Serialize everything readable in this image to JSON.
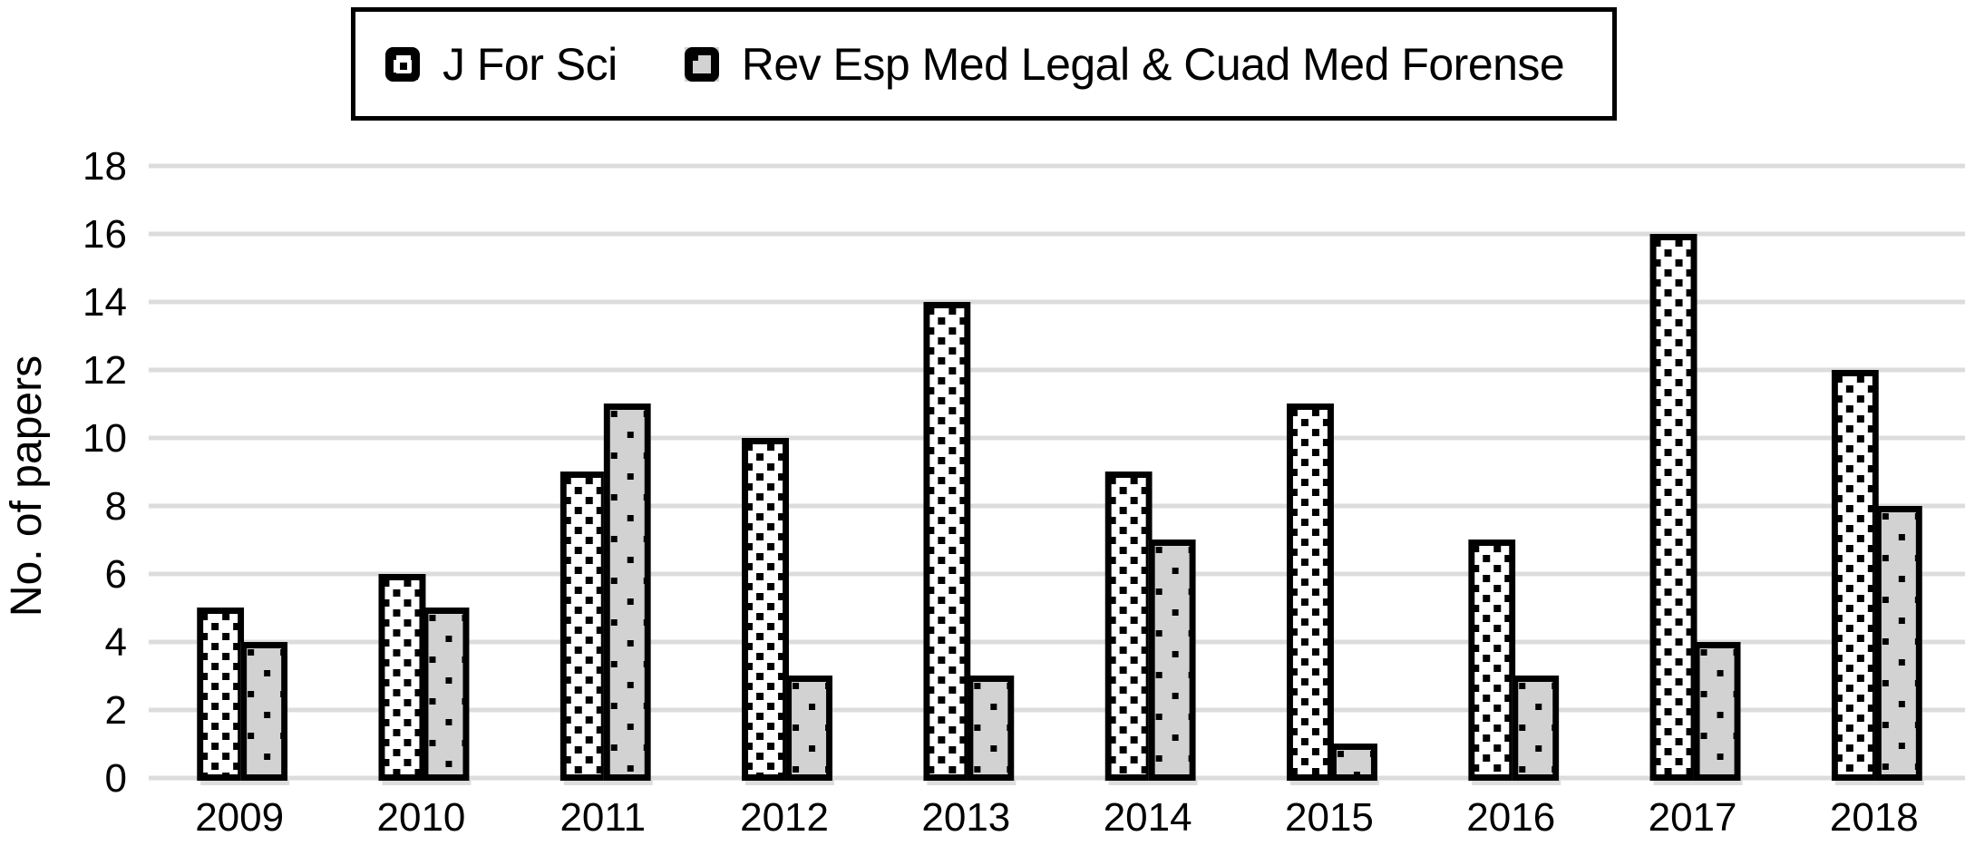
{
  "y_axis_title": "No. of papers",
  "chart_data": {
    "type": "bar",
    "categories": [
      "2009",
      "2010",
      "2011",
      "2012",
      "2013",
      "2014",
      "2015",
      "2016",
      "2017",
      "2018"
    ],
    "series": [
      {
        "name": "J For Sci",
        "values": [
          5,
          6,
          9,
          10,
          14,
          9,
          11,
          7,
          16,
          12
        ],
        "fill": "#ffffff",
        "pattern": "dense-black-square-dots-on-white"
      },
      {
        "name": "Rev Esp Med Legal & Cuad Med Forense",
        "values": [
          4,
          5,
          11,
          3,
          3,
          7,
          1,
          3,
          4,
          8
        ],
        "fill": "#d2d2d2",
        "pattern": "sparse-black-square-dots-on-gray"
      }
    ],
    "xlabel": "",
    "ylabel": "No. of papers",
    "ylim": [
      0,
      18
    ],
    "yticks": [
      0,
      2,
      4,
      6,
      8,
      10,
      12,
      14,
      16,
      18
    ],
    "grid": "horizontal",
    "legend_position": "top",
    "colors": {
      "grid": "#dcdcdc",
      "bar_border": "#000000",
      "gray_fill": "#d2d2d2",
      "white_fill": "#ffffff",
      "shadow": "#dddddd",
      "text": "#000000",
      "background": "#ffffff"
    }
  }
}
